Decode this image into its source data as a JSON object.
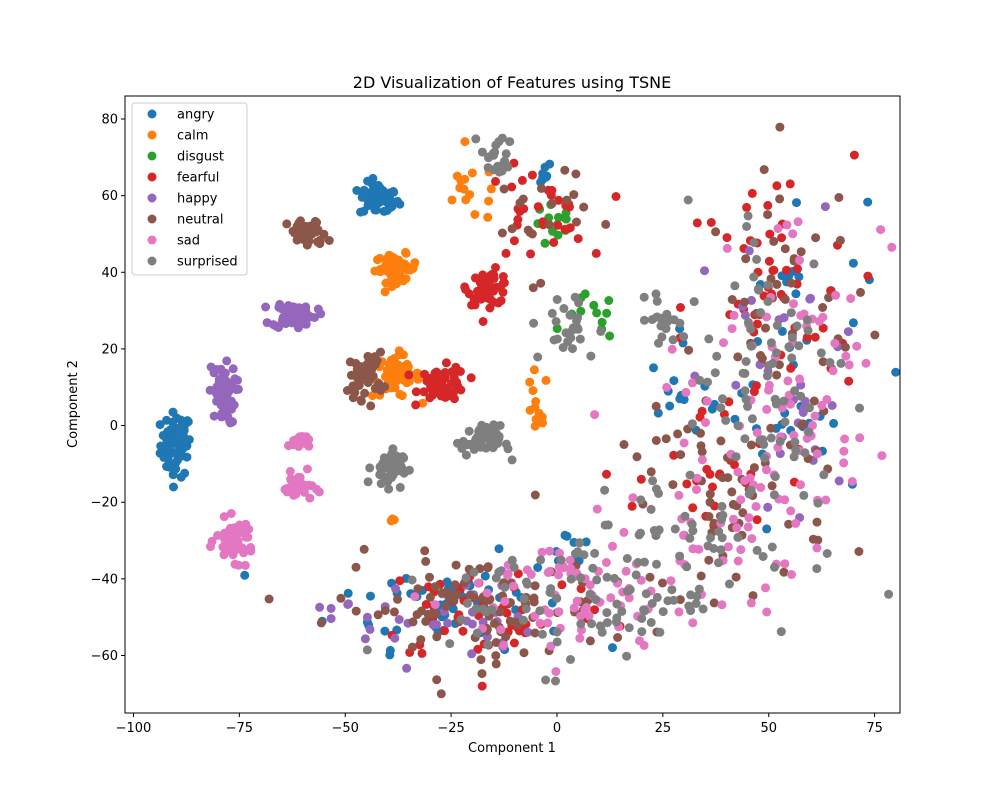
{
  "chart_data": {
    "type": "scatter",
    "title": "2D Visualization of Features using TSNE",
    "xlabel": "Component 1",
    "ylabel": "Component 2",
    "xlim": [
      -102,
      81
    ],
    "ylim": [
      -75,
      86
    ],
    "xticks": [
      -100,
      -75,
      -50,
      -25,
      0,
      25,
      50,
      75
    ],
    "yticks": [
      -60,
      -40,
      -20,
      0,
      20,
      40,
      60,
      80
    ],
    "grid": false,
    "legend_position": "top-left",
    "series": [
      {
        "name": "angry",
        "color": "#1f77b4",
        "clusters": [
          {
            "cx": -90,
            "cy": -5,
            "sx": 1.8,
            "sy": 4.2,
            "n": 70
          },
          {
            "cx": -42,
            "cy": 59,
            "sx": 2.3,
            "sy": 2.2,
            "n": 55
          },
          {
            "cx": -4,
            "cy": 66,
            "sx": 1.5,
            "sy": 1.5,
            "n": 8
          },
          {
            "cx": 3,
            "cy": -32,
            "sx": 3.0,
            "sy": 3.0,
            "n": 10
          },
          {
            "cx": -25,
            "cy": -46,
            "sx": 14,
            "sy": 6,
            "n": 55
          },
          {
            "cx": 30,
            "cy": 8,
            "sx": 4,
            "sy": 6,
            "n": 12
          },
          {
            "cx": 55,
            "cy": 20,
            "sx": 9,
            "sy": 22,
            "n": 40
          }
        ]
      },
      {
        "name": "calm",
        "color": "#ff7f0e",
        "clusters": [
          {
            "cx": -38,
            "cy": 41,
            "sx": 2.5,
            "sy": 1.8,
            "n": 55
          },
          {
            "cx": -38,
            "cy": 13,
            "sx": 2.8,
            "sy": 2.8,
            "n": 60
          },
          {
            "cx": -20,
            "cy": 61,
            "sx": 4,
            "sy": 4,
            "n": 15
          },
          {
            "cx": -5,
            "cy": 4,
            "sx": 1.5,
            "sy": 5,
            "n": 12
          },
          {
            "cx": -40,
            "cy": -25,
            "sx": 1,
            "sy": 0.5,
            "n": 3
          }
        ]
      },
      {
        "name": "disgust",
        "color": "#2ca02c",
        "clusters": [
          {
            "cx": 0,
            "cy": 52,
            "sx": 3,
            "sy": 3,
            "n": 14
          },
          {
            "cx": 8,
            "cy": 28,
            "sx": 3,
            "sy": 3,
            "n": 12
          }
        ]
      },
      {
        "name": "fearful",
        "color": "#d62728",
        "clusters": [
          {
            "cx": -27,
            "cy": 11,
            "sx": 2.8,
            "sy": 2.2,
            "n": 60
          },
          {
            "cx": -16,
            "cy": 36,
            "sx": 2.5,
            "sy": 2.2,
            "n": 50
          },
          {
            "cx": -5,
            "cy": 55,
            "sx": 6,
            "sy": 6,
            "n": 30
          },
          {
            "cx": 50,
            "cy": 30,
            "sx": 10,
            "sy": 20,
            "n": 55
          },
          {
            "cx": -15,
            "cy": -48,
            "sx": 14,
            "sy": 7,
            "n": 55
          },
          {
            "cx": 35,
            "cy": -15,
            "sx": 8,
            "sy": 10,
            "n": 25
          }
        ]
      },
      {
        "name": "happy",
        "color": "#9467bd",
        "clusters": [
          {
            "cx": -62,
            "cy": 29,
            "sx": 2.6,
            "sy": 1.8,
            "n": 55
          },
          {
            "cx": -79,
            "cy": 8,
            "sx": 1.6,
            "sy": 3.8,
            "n": 55
          },
          {
            "cx": -30,
            "cy": -50,
            "sx": 12,
            "sy": 6,
            "n": 35
          },
          {
            "cx": 55,
            "cy": 10,
            "sx": 10,
            "sy": 22,
            "n": 30
          }
        ]
      },
      {
        "name": "neutral",
        "color": "#8c564b",
        "clusters": [
          {
            "cx": -59,
            "cy": 50,
            "sx": 2.3,
            "sy": 1.8,
            "n": 45
          },
          {
            "cx": -45,
            "cy": 13,
            "sx": 2.0,
            "sy": 3.0,
            "n": 40
          },
          {
            "cx": -20,
            "cy": -48,
            "sx": 16,
            "sy": 7,
            "n": 90
          },
          {
            "cx": 40,
            "cy": -20,
            "sx": 12,
            "sy": 12,
            "n": 60
          },
          {
            "cx": 55,
            "cy": 25,
            "sx": 10,
            "sy": 22,
            "n": 50
          },
          {
            "cx": -5,
            "cy": 55,
            "sx": 6,
            "sy": 8,
            "n": 20
          }
        ]
      },
      {
        "name": "sad",
        "color": "#e377c2",
        "clusters": [
          {
            "cx": -61,
            "cy": -4,
            "sx": 1.2,
            "sy": 1.0,
            "n": 18
          },
          {
            "cx": -61,
            "cy": -16,
            "sx": 1.8,
            "sy": 1.8,
            "n": 30
          },
          {
            "cx": -76,
            "cy": -30,
            "sx": 2.2,
            "sy": 2.6,
            "n": 55
          },
          {
            "cx": 5,
            "cy": -45,
            "sx": 15,
            "sy": 9,
            "n": 80
          },
          {
            "cx": 45,
            "cy": -15,
            "sx": 12,
            "sy": 14,
            "n": 70
          },
          {
            "cx": 58,
            "cy": 25,
            "sx": 10,
            "sy": 18,
            "n": 45
          }
        ]
      },
      {
        "name": "surprised",
        "color": "#7f7f7f",
        "clusters": [
          {
            "cx": -40,
            "cy": -11,
            "sx": 1.8,
            "sy": 2.4,
            "n": 45
          },
          {
            "cx": -18,
            "cy": -4,
            "sx": 2.3,
            "sy": 2.0,
            "n": 45
          },
          {
            "cx": -14,
            "cy": 70,
            "sx": 2,
            "sy": 3,
            "n": 20
          },
          {
            "cx": 2,
            "cy": 25,
            "sx": 4,
            "sy": 5,
            "n": 25
          },
          {
            "cx": 25,
            "cy": 28,
            "sx": 1.8,
            "sy": 3.0,
            "n": 20
          },
          {
            "cx": 5,
            "cy": -45,
            "sx": 15,
            "sy": 9,
            "n": 80
          },
          {
            "cx": 50,
            "cy": 10,
            "sx": 10,
            "sy": 25,
            "n": 90
          },
          {
            "cx": 30,
            "cy": -30,
            "sx": 12,
            "sy": 10,
            "n": 40
          }
        ]
      }
    ]
  }
}
